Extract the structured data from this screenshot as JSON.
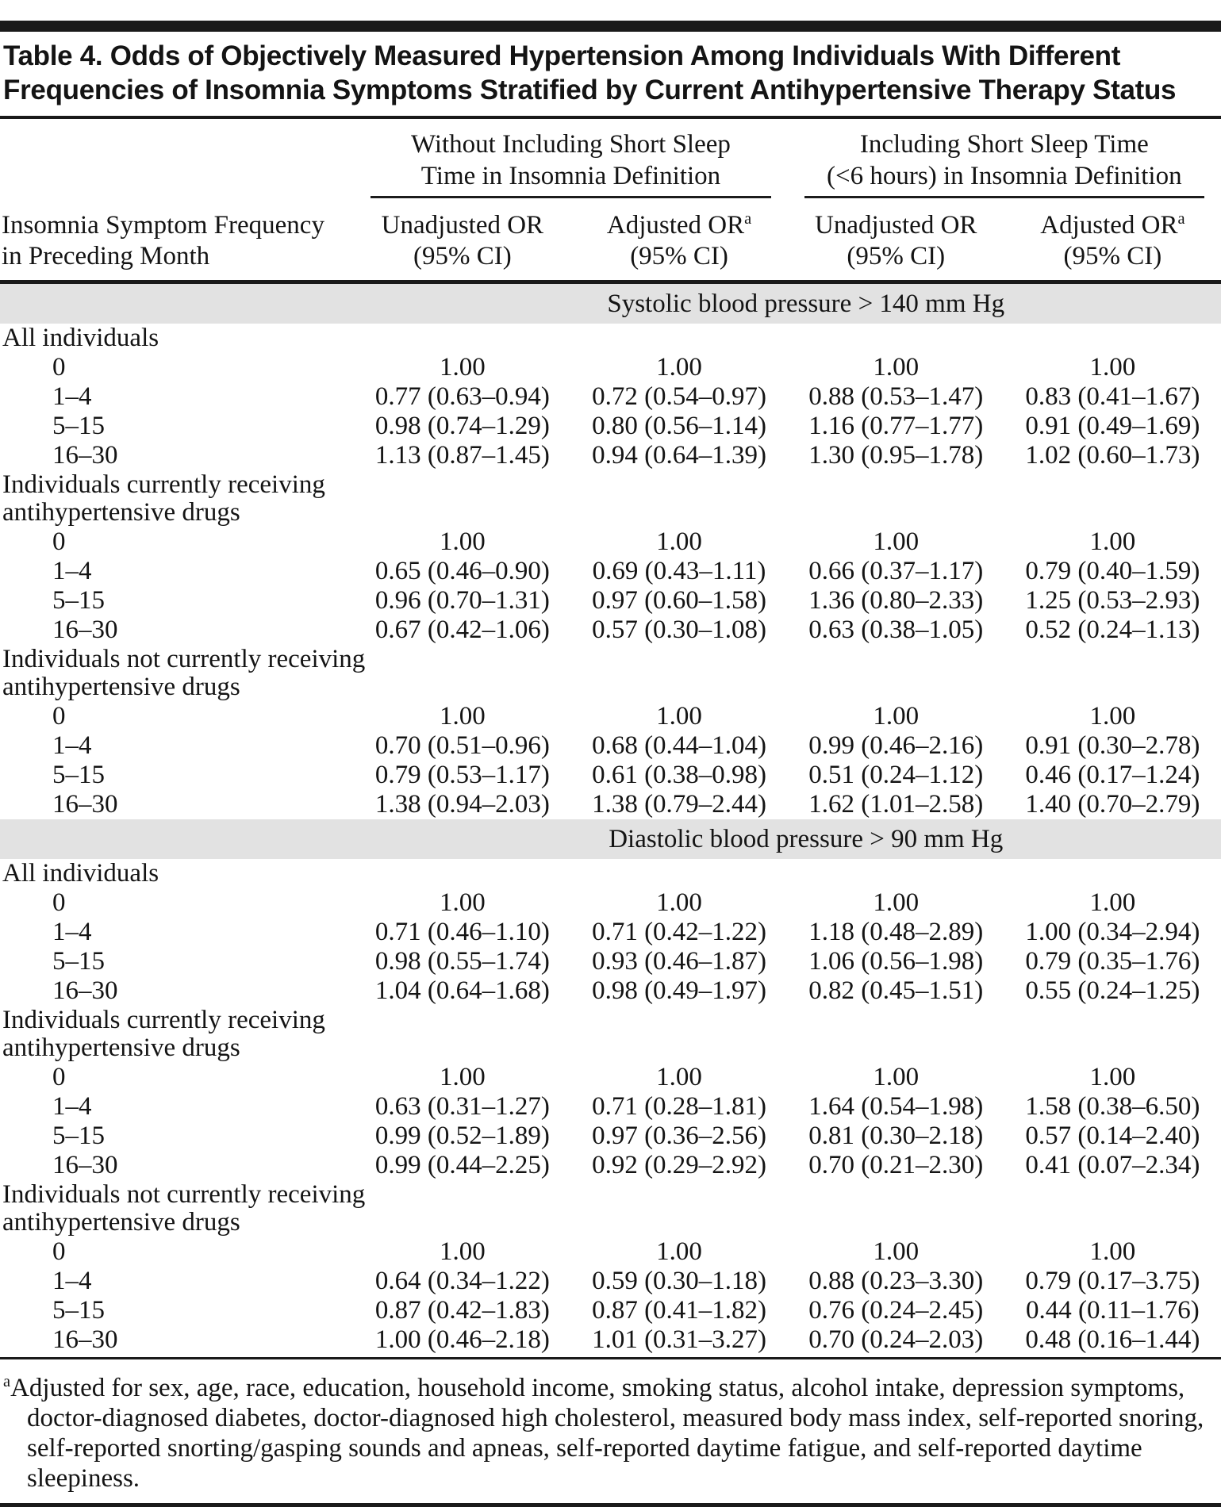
{
  "title": "Table 4. Odds of Objectively Measured Hypertension Among Individuals With Different Frequencies of Insomnia Symptoms Stratified by Current Antihypertensive Therapy Status",
  "header": {
    "stub_lines": [
      "Insomnia Symptom Frequency",
      "in Preceding Month"
    ],
    "groups": [
      {
        "lines": [
          "Without Including Short Sleep",
          "Time in Insomnia Definition"
        ]
      },
      {
        "lines": [
          "Including Short Sleep Time",
          "(<6 hours) in Insomnia Definition"
        ]
      }
    ],
    "columns": [
      {
        "title": "Unadjusted OR",
        "sup": "",
        "sub": "(95% CI)"
      },
      {
        "title": "Adjusted OR",
        "sup": "a",
        "sub": "(95% CI)"
      },
      {
        "title": "Unadjusted OR",
        "sup": "",
        "sub": "(95% CI)"
      },
      {
        "title": "Adjusted OR",
        "sup": "a",
        "sub": "(95% CI)"
      }
    ]
  },
  "sections": [
    {
      "id": "systolic",
      "band": "Systolic blood pressure > 140 mm Hg",
      "groups": [
        {
          "label_lines": [
            "All individuals"
          ],
          "rows": [
            {
              "freq": "0",
              "values": [
                "1.00",
                "1.00",
                "1.00",
                "1.00"
              ]
            },
            {
              "freq": "1–4",
              "values": [
                "0.77 (0.63–0.94)",
                "0.72 (0.54–0.97)",
                "0.88 (0.53–1.47)",
                "0.83 (0.41–1.67)"
              ]
            },
            {
              "freq": "5–15",
              "values": [
                "0.98 (0.74–1.29)",
                "0.80 (0.56–1.14)",
                "1.16 (0.77–1.77)",
                "0.91 (0.49–1.69)"
              ]
            },
            {
              "freq": "16–30",
              "values": [
                "1.13 (0.87–1.45)",
                "0.94 (0.64–1.39)",
                "1.30 (0.95–1.78)",
                "1.02 (0.60–1.73)"
              ]
            }
          ]
        },
        {
          "label_lines": [
            "Individuals currently receiving",
            "antihypertensive drugs"
          ],
          "rows": [
            {
              "freq": "0",
              "values": [
                "1.00",
                "1.00",
                "1.00",
                "1.00"
              ]
            },
            {
              "freq": "1–4",
              "values": [
                "0.65 (0.46–0.90)",
                "0.69 (0.43–1.11)",
                "0.66 (0.37–1.17)",
                "0.79 (0.40–1.59)"
              ]
            },
            {
              "freq": "5–15",
              "values": [
                "0.96 (0.70–1.31)",
                "0.97 (0.60–1.58)",
                "1.36 (0.80–2.33)",
                "1.25 (0.53–2.93)"
              ]
            },
            {
              "freq": "16–30",
              "values": [
                "0.67 (0.42–1.06)",
                "0.57 (0.30–1.08)",
                "0.63 (0.38–1.05)",
                "0.52 (0.24–1.13)"
              ]
            }
          ]
        },
        {
          "label_lines": [
            "Individuals not currently receiving",
            "antihypertensive drugs"
          ],
          "rows": [
            {
              "freq": "0",
              "values": [
                "1.00",
                "1.00",
                "1.00",
                "1.00"
              ]
            },
            {
              "freq": "1–4",
              "values": [
                "0.70 (0.51–0.96)",
                "0.68 (0.44–1.04)",
                "0.99 (0.46–2.16)",
                "0.91 (0.30–2.78)"
              ]
            },
            {
              "freq": "5–15",
              "values": [
                "0.79 (0.53–1.17)",
                "0.61 (0.38–0.98)",
                "0.51 (0.24–1.12)",
                "0.46 (0.17–1.24)"
              ]
            },
            {
              "freq": "16–30",
              "values": [
                "1.38 (0.94–2.03)",
                "1.38 (0.79–2.44)",
                "1.62 (1.01–2.58)",
                "1.40 (0.70–2.79)"
              ]
            }
          ]
        }
      ]
    },
    {
      "id": "diastolic",
      "band": "Diastolic blood pressure > 90 mm Hg",
      "groups": [
        {
          "label_lines": [
            "All individuals"
          ],
          "rows": [
            {
              "freq": "0",
              "values": [
                "1.00",
                "1.00",
                "1.00",
                "1.00"
              ]
            },
            {
              "freq": "1–4",
              "values": [
                "0.71 (0.46–1.10)",
                "0.71 (0.42–1.22)",
                "1.18 (0.48–2.89)",
                "1.00 (0.34–2.94)"
              ]
            },
            {
              "freq": "5–15",
              "values": [
                "0.98 (0.55–1.74)",
                "0.93 (0.46–1.87)",
                "1.06 (0.56–1.98)",
                "0.79 (0.35–1.76)"
              ]
            },
            {
              "freq": "16–30",
              "values": [
                "1.04 (0.64–1.68)",
                "0.98 (0.49–1.97)",
                "0.82 (0.45–1.51)",
                "0.55 (0.24–1.25)"
              ]
            }
          ]
        },
        {
          "label_lines": [
            "Individuals currently receiving",
            "antihypertensive drugs"
          ],
          "rows": [
            {
              "freq": "0",
              "values": [
                "1.00",
                "1.00",
                "1.00",
                "1.00"
              ]
            },
            {
              "freq": "1–4",
              "values": [
                "0.63 (0.31–1.27)",
                "0.71 (0.28–1.81)",
                "1.64 (0.54–1.98)",
                "1.58 (0.38–6.50)"
              ]
            },
            {
              "freq": "5–15",
              "values": [
                "0.99 (0.52–1.89)",
                "0.97 (0.36–2.56)",
                "0.81 (0.30–2.18)",
                "0.57 (0.14–2.40)"
              ]
            },
            {
              "freq": "16–30",
              "values": [
                "0.99 (0.44–2.25)",
                "0.92 (0.29–2.92)",
                "0.70 (0.21–2.30)",
                "0.41 (0.07–2.34)"
              ]
            }
          ]
        },
        {
          "label_lines": [
            "Individuals not currently receiving",
            "antihypertensive drugs"
          ],
          "rows": [
            {
              "freq": "0",
              "values": [
                "1.00",
                "1.00",
                "1.00",
                "1.00"
              ]
            },
            {
              "freq": "1–4",
              "values": [
                "0.64 (0.34–1.22)",
                "0.59 (0.30–1.18)",
                "0.88 (0.23–3.30)",
                "0.79 (0.17–3.75)"
              ]
            },
            {
              "freq": "5–15",
              "values": [
                "0.87 (0.42–1.83)",
                "0.87 (0.41–1.82)",
                "0.76 (0.24–2.45)",
                "0.44 (0.11–1.76)"
              ]
            },
            {
              "freq": "16–30",
              "values": [
                "1.00 (0.46–2.18)",
                "1.01 (0.31–3.27)",
                "0.70 (0.24–2.03)",
                "0.48 (0.16–1.44)"
              ]
            }
          ]
        }
      ]
    }
  ],
  "footnote": {
    "marker": "a",
    "text": "Adjusted for sex, age, race, education, household income, smoking status, alcohol intake, depression symptoms, doctor-diagnosed diabetes, doctor-diagnosed high cholesterol, measured body mass index, self-reported snoring, self-reported snorting/gasping sounds and apneas, self-reported daytime fatigue, and self-reported daytime sleepiness."
  },
  "colors": {
    "band_background": "#e2e2e2",
    "rule_black": "#1a1a1a"
  }
}
